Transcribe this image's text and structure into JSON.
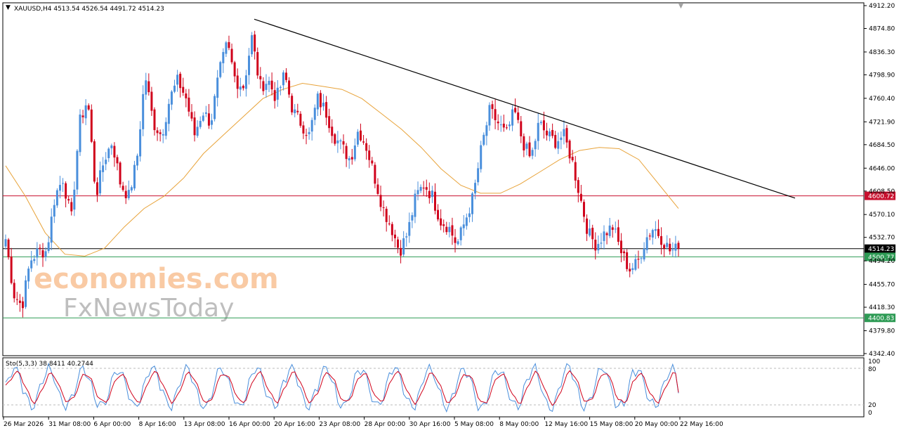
{
  "window": {
    "symbol_info": "XAUUSD,H4  4513.54 4526.54 4491.72 4514.23",
    "menu_icon": "triangle-down-icon",
    "top_marker_icon": "triangle-down-icon"
  },
  "indicator": {
    "label": "Sto(5,3,3) 38.8411 40.2744",
    "scale_labels": [
      "100",
      "80",
      "20",
      "0"
    ],
    "main_color": "#4a8fdc",
    "signal_color": "#d0021b"
  },
  "watermark": {
    "brand1": "economies.com",
    "brand1_color": "#f5a05a",
    "brand2_prefix": "F",
    "brand2_x": "x",
    "brand2_suffix": "NewsToday",
    "brand2_color": "#8a8a8a"
  },
  "price_axis": {
    "labels": [
      "4912.20",
      "4874.80",
      "4836.30",
      "4798.90",
      "4760.40",
      "4721.90",
      "4684.50",
      "4646.00",
      "4608.50",
      "4570.10",
      "4532.70",
      "4494.20",
      "4455.70",
      "4418.30",
      "4379.80",
      "4342.40"
    ]
  },
  "levels": [
    {
      "name": "resistance-line",
      "price": 4600.72,
      "label": "4600.72",
      "color": "#c8102e"
    },
    {
      "name": "current-price-line",
      "price": 4514.23,
      "label": "4514.23",
      "color": "#000000"
    },
    {
      "name": "support-line-1",
      "price": 4500.77,
      "label": "4500.77",
      "color": "#2e9b55"
    },
    {
      "name": "support-line-2",
      "price": 4400.83,
      "label": "4400.83",
      "color": "#2e9b55"
    }
  ],
  "time_axis": {
    "labels": [
      "26 Mar 2026",
      "31 Mar 08:00",
      "6 Apr 00:00",
      "8 Apr 16:00",
      "13 Apr 08:00",
      "16 Apr 00:00",
      "20 Apr 16:00",
      "23 Apr 08:00",
      "28 Apr 00:00",
      "30 Apr 16:00",
      "5 May 08:00",
      "8 May 00:00",
      "12 May 16:00",
      "15 May 08:00",
      "20 May 00:00",
      "22 May 16:00"
    ]
  },
  "chart_data": {
    "type": "candlestick",
    "symbol": "XAUUSD",
    "timeframe": "H4",
    "ylim": [
      4342.4,
      4912.2
    ],
    "colors": {
      "bull": "#4a8fdc",
      "bear": "#d0021b",
      "ma": "#e8a33a",
      "trendline": "#000000"
    },
    "trendline": {
      "from_price": 4890,
      "to_price": 4597
    },
    "anchor_closes": [
      4530,
      4440,
      4420,
      4495,
      4510,
      4510,
      4600,
      4630,
      4560,
      4720,
      4760,
      4600,
      4660,
      4690,
      4620,
      4600,
      4660,
      4800,
      4720,
      4700,
      4760,
      4790,
      4760,
      4700,
      4740,
      4720,
      4800,
      4850,
      4790,
      4780,
      4860,
      4780,
      4790,
      4760,
      4800,
      4740,
      4720,
      4700,
      4760,
      4740,
      4700,
      4680,
      4660,
      4710,
      4680,
      4630,
      4580,
      4550,
      4510,
      4540,
      4600,
      4620,
      4600,
      4560,
      4550,
      4520,
      4560,
      4600,
      4680,
      4740,
      4720,
      4700,
      4740,
      4690,
      4660,
      4720,
      4700,
      4690,
      4700,
      4660,
      4600,
      4540,
      4520,
      4540,
      4550,
      4510,
      4480,
      4490,
      4530,
      4550,
      4530,
      4510,
      4514.23
    ],
    "ma_anchors": [
      4650,
      4600,
      4540,
      4505,
      4502,
      4515,
      4550,
      4580,
      4600,
      4630,
      4670,
      4700,
      4730,
      4760,
      4775,
      4785,
      4780,
      4775,
      4760,
      4735,
      4710,
      4680,
      4645,
      4618,
      4605,
      4605,
      4620,
      4640,
      4660,
      4675,
      4680,
      4678,
      4660,
      4620,
      4580
    ],
    "stochastic": {
      "k_period": 5,
      "d_period": 3,
      "slowing": 3,
      "main_last": 38.8411,
      "signal_last": 40.2744,
      "levels": [
        80,
        20
      ],
      "range": [
        0,
        100
      ]
    }
  }
}
